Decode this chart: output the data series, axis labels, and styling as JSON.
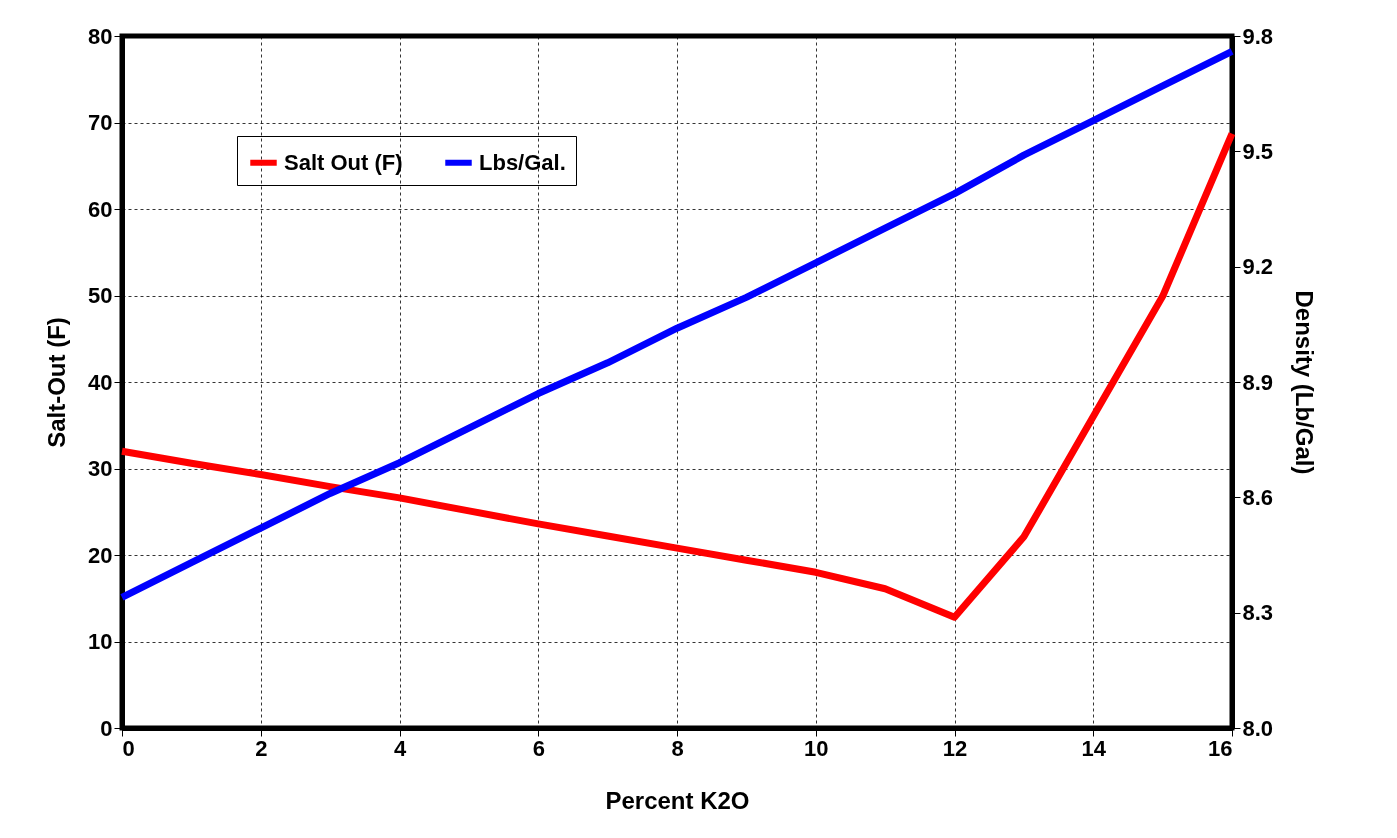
{
  "chart_data": {
    "type": "line",
    "xlabel": "Percent K2O",
    "ylabel": "Salt-Out (F)",
    "y2label": "Density (Lb/Gal)",
    "x": [
      0,
      1,
      2,
      3,
      4,
      5,
      6,
      7,
      8,
      9,
      10,
      11,
      12,
      13,
      14,
      15,
      16
    ],
    "series": [
      {
        "name": "Salt Out (F)",
        "color": "#ff0000",
        "values": [
          32,
          30.6,
          29.3,
          27.9,
          26.6,
          25.1,
          23.6,
          22.2,
          20.8,
          19.4,
          18,
          16.1,
          12.8,
          22.1,
          36,
          49.9,
          68.7
        ]
      },
      {
        "name": "Lbs/Gal.",
        "color": "#0000ff",
        "axis": "y2",
        "values": [
          8.34,
          8.43,
          8.52,
          8.61,
          8.69,
          8.78,
          8.87,
          8.95,
          9.04,
          9.12,
          9.21,
          9.3,
          9.39,
          9.49,
          9.58,
          9.67,
          9.76
        ]
      }
    ],
    "xlim": [
      0,
      16
    ],
    "xticks": [
      0,
      2,
      4,
      6,
      8,
      10,
      12,
      14,
      16
    ],
    "ylim": [
      0,
      80
    ],
    "yticks": [
      0,
      10,
      20,
      30,
      40,
      50,
      60,
      70,
      80
    ],
    "y2lim": [
      8.0,
      9.8
    ],
    "y2ticks": [
      {
        "value": 8.0,
        "label": "8.0"
      },
      {
        "value": 8.3,
        "label": "8.3"
      },
      {
        "value": 8.6,
        "label": "8.6"
      },
      {
        "value": 8.9,
        "label": "8.9"
      },
      {
        "value": 9.2,
        "label": "9.2"
      },
      {
        "value": 9.5,
        "label": "9.5"
      },
      {
        "value": 9.8,
        "label": "9.8"
      }
    ],
    "grid": true,
    "legend": "top left",
    "marker": "none",
    "line_style": "solid"
  }
}
